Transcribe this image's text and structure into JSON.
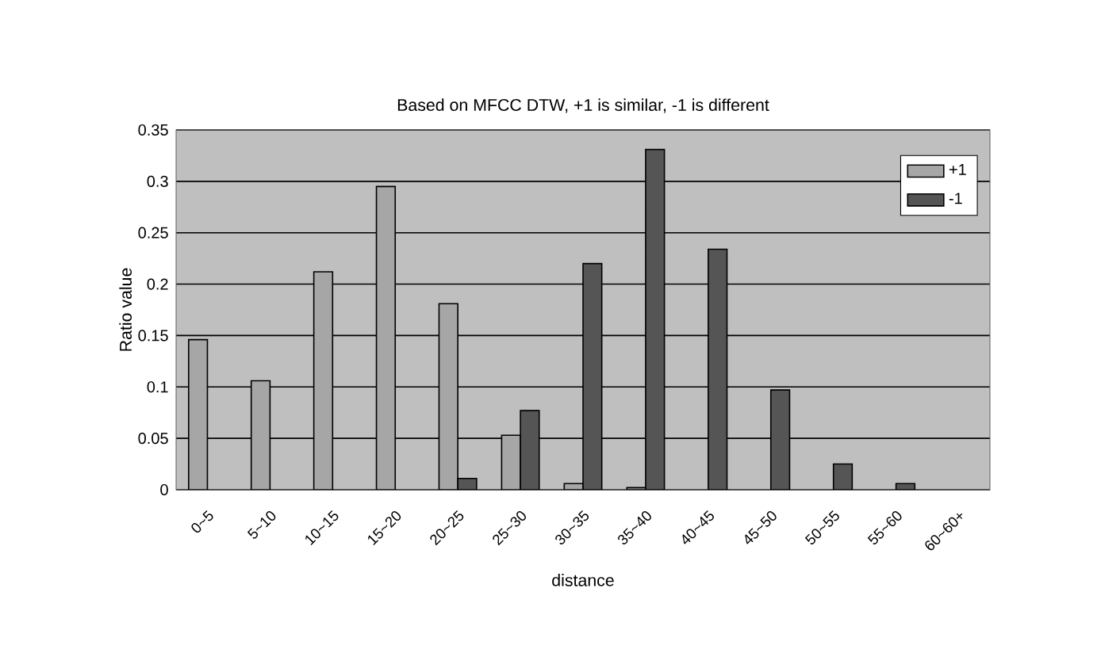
{
  "chart_data": {
    "type": "bar",
    "title": "Based on MFCC DTW, +1 is similar, -1 is different",
    "xlabel": "distance",
    "ylabel": "Ratio value",
    "categories": [
      "0~5",
      "5~10",
      "10~15",
      "15~20",
      "20~25",
      "25~30",
      "30~35",
      "35~40",
      "40~45",
      "45~50",
      "50~55",
      "55~60",
      "60~60+"
    ],
    "series": [
      {
        "name": "+1",
        "color": "#a6a6a6",
        "values": [
          0.146,
          0.106,
          0.212,
          0.295,
          0.181,
          0.053,
          0.006,
          0.002,
          null,
          null,
          null,
          null,
          null
        ]
      },
      {
        "name": "-1",
        "color": "#555555",
        "values": [
          null,
          null,
          null,
          null,
          0.011,
          0.077,
          0.22,
          0.331,
          0.234,
          0.097,
          0.025,
          0.006,
          null
        ]
      }
    ],
    "ylim": [
      0,
      0.35
    ],
    "yticks": [
      0,
      0.05,
      0.1,
      0.15,
      0.2,
      0.25,
      0.3,
      0.35
    ],
    "grid": "y",
    "legend": "top right"
  }
}
